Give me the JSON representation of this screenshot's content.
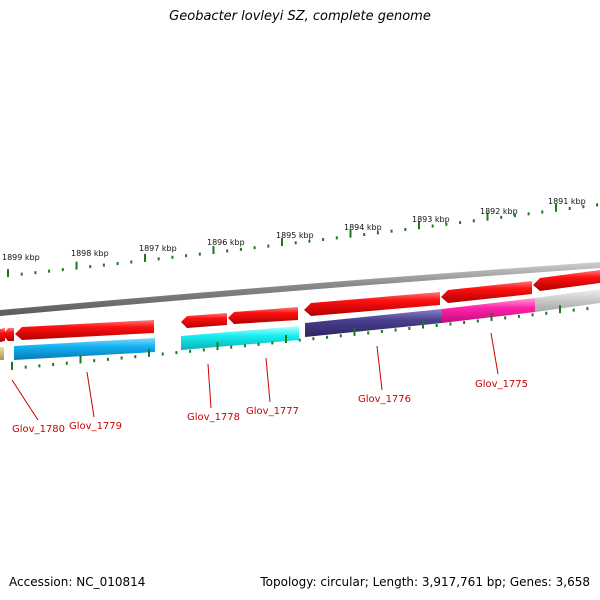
{
  "title": "Geobacter lovleyi SZ, complete genome",
  "footer": {
    "accession": "Accession: NC_010814",
    "summary": "Topology: circular; Length: 3,917,761 bp; Genes: 3,658"
  },
  "colors": {
    "tick": "#1a7a1a",
    "backbone": "#8a8a8a",
    "forward_gene": "#e81010",
    "label": "#cc0000"
  },
  "kbp_ticks": [
    "1899 kbp",
    "1898 kbp",
    "1897 kbp",
    "1896 kbp",
    "1895 kbp",
    "1894 kbp",
    "1893 kbp",
    "1892 kbp",
    "1891 kbp"
  ],
  "gene_labels": [
    "Glov_1780",
    "Glov_1779",
    "Glov_1778",
    "Glov_1777",
    "Glov_1776",
    "Glov_1775"
  ]
}
